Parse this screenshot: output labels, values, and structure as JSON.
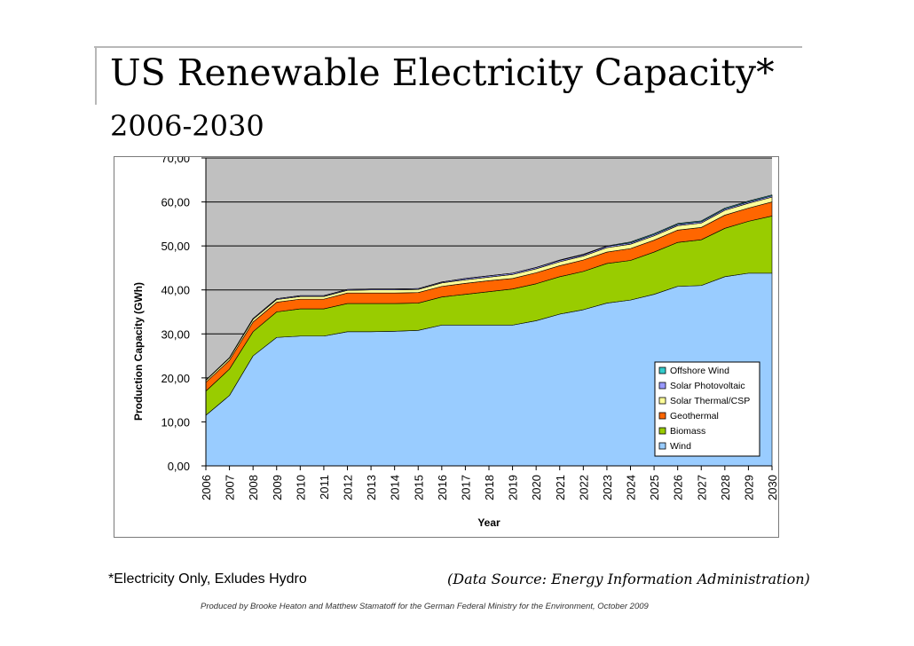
{
  "slide": {
    "title": "US Renewable Electricity Capacity*",
    "subtitle": "2006-2030",
    "footnote": "*Electricity Only, Exludes Hydro",
    "source": "(Data Source: Energy Information Administration)",
    "credit": "Produced by Brooke Heaton and Matthew Stamatoff for the German Federal Ministry for the Environment, October 2009"
  },
  "chart_data": {
    "type": "area",
    "stacked": true,
    "xlabel": "Year",
    "ylabel": "Production Capacity (GWh)",
    "ylim": [
      0,
      70
    ],
    "yticks": [
      "0,00",
      "10,00",
      "20,00",
      "30,00",
      "40,00",
      "50,00",
      "60,00",
      "70,00"
    ],
    "grid": true,
    "legend_position": "right",
    "plot_background": "#c0c0c0",
    "categories": [
      "2006",
      "2007",
      "2008",
      "2009",
      "2010",
      "2011",
      "2012",
      "2013",
      "2014",
      "2015",
      "2016",
      "2017",
      "2018",
      "2019",
      "2020",
      "2021",
      "2022",
      "2023",
      "2024",
      "2025",
      "2026",
      "2027",
      "2028",
      "2029",
      "2030"
    ],
    "series": [
      {
        "name": "Wind",
        "color": "#99ccff",
        "values": [
          11.5,
          16,
          25,
          29.2,
          29.5,
          29.5,
          30.5,
          30.5,
          30.6,
          30.8,
          32,
          32,
          32,
          32,
          33,
          34.5,
          35.5,
          37,
          37.7,
          39,
          40.8,
          41,
          43,
          43.8,
          43.8
        ]
      },
      {
        "name": "Biomass",
        "color": "#99cc00",
        "values": [
          5.5,
          6,
          5.5,
          5.8,
          6.2,
          6.2,
          6.4,
          6.4,
          6.3,
          6.2,
          6.4,
          7,
          7.6,
          8.2,
          8.4,
          8.5,
          8.7,
          9,
          9,
          9.6,
          10,
          10.4,
          11,
          11.8,
          13
        ]
      },
      {
        "name": "Geothermal",
        "color": "#ff6600",
        "values": [
          2.0,
          2.0,
          2.2,
          2.2,
          2.2,
          2.2,
          2.4,
          2.4,
          2.4,
          2.4,
          2.4,
          2.5,
          2.5,
          2.4,
          2.5,
          2.5,
          2.6,
          2.6,
          2.7,
          2.7,
          2.8,
          2.8,
          3.0,
          3.0,
          3.2
        ]
      },
      {
        "name": "Solar Thermal/CSP",
        "color": "#ffff99",
        "values": [
          0.4,
          0.5,
          0.6,
          0.6,
          0.6,
          0.6,
          0.6,
          0.7,
          0.7,
          0.7,
          0.8,
          0.8,
          0.8,
          0.9,
          0.9,
          0.9,
          0.9,
          1.0,
          1.0,
          1.0,
          1.0,
          1.0,
          1.1,
          1.1,
          1.1
        ]
      },
      {
        "name": "Solar Photovoltaic",
        "color": "#9999ff",
        "values": [
          0.1,
          0.1,
          0.2,
          0.2,
          0.2,
          0.2,
          0.2,
          0.2,
          0.2,
          0.2,
          0.2,
          0.3,
          0.3,
          0.3,
          0.3,
          0.3,
          0.3,
          0.3,
          0.3,
          0.3,
          0.3,
          0.3,
          0.3,
          0.3,
          0.3
        ]
      },
      {
        "name": "Offshore Wind",
        "color": "#33cccc",
        "values": [
          0,
          0,
          0,
          0,
          0,
          0,
          0,
          0,
          0,
          0,
          0,
          0,
          0,
          0,
          0,
          0.1,
          0.1,
          0.1,
          0.2,
          0.2,
          0.2,
          0.2,
          0.2,
          0.2,
          0.2
        ]
      }
    ]
  }
}
